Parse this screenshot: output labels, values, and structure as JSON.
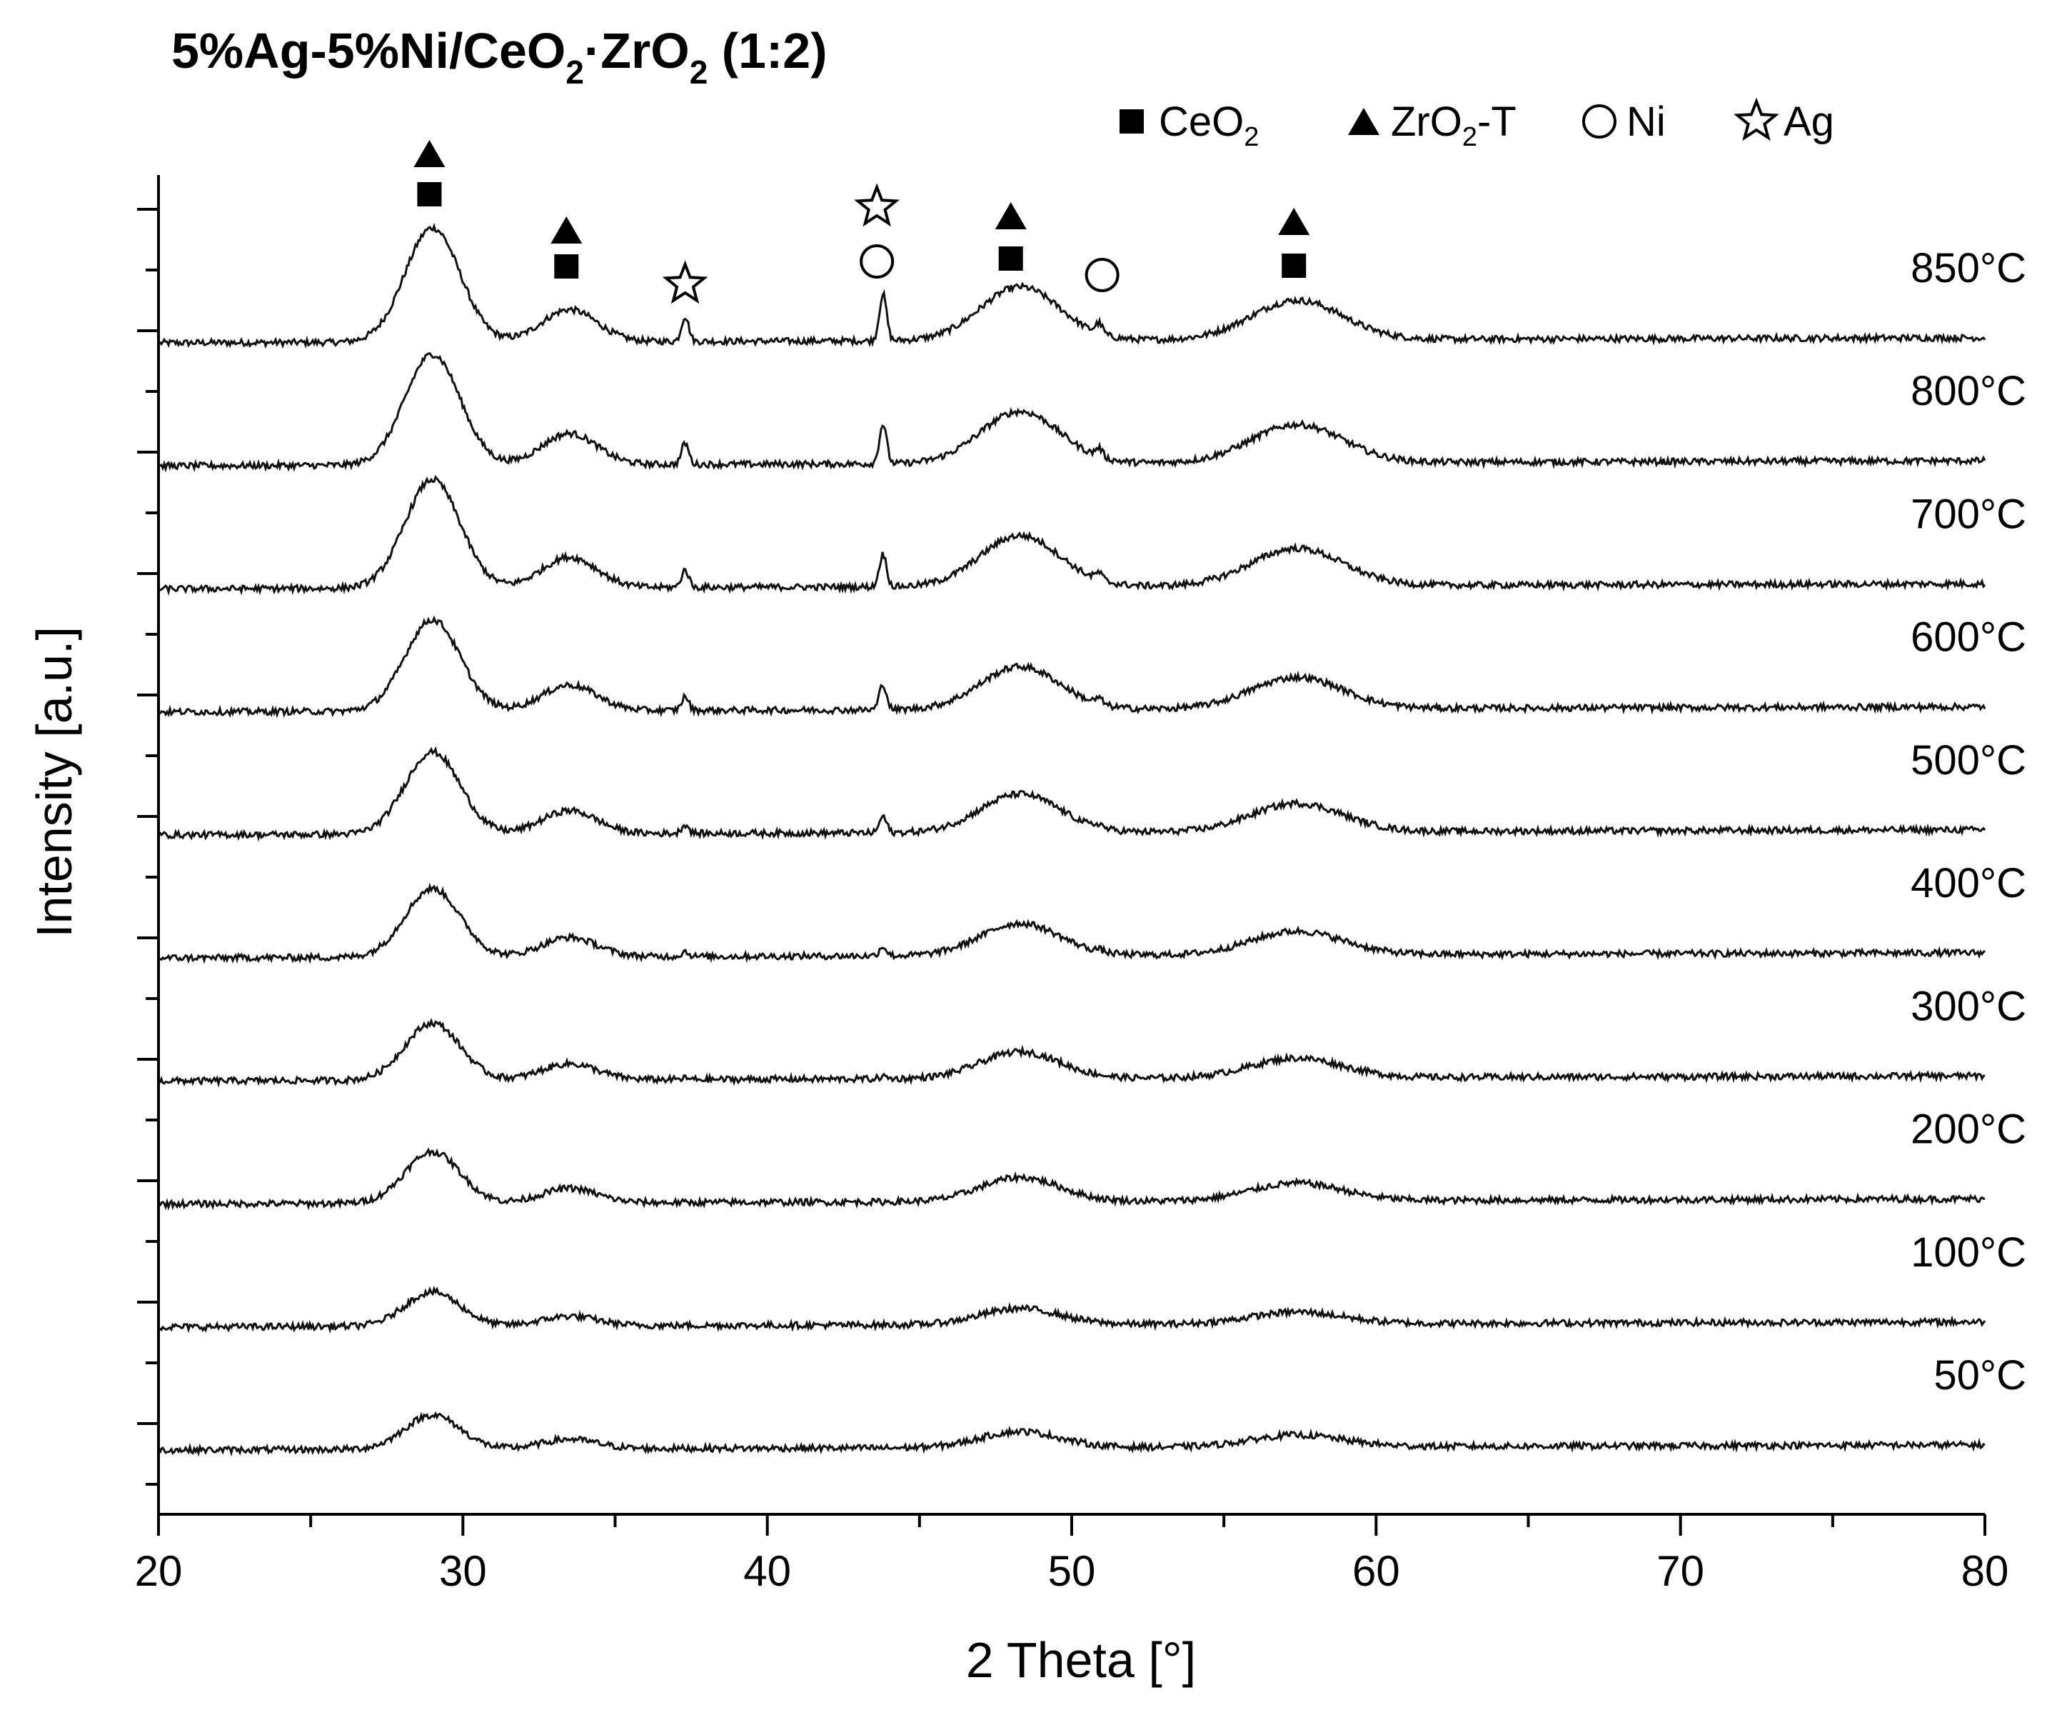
{
  "chart_data": {
    "type": "line",
    "title": {
      "prefix": "5%Ag-5%Ni/CeO",
      "s1": "2",
      "mid": "·ZrO",
      "s2": "2",
      "suffix": " (1:2)"
    },
    "xlabel": "2 Theta [°]",
    "ylabel": "Intensity [a.u.]",
    "xlim": [
      20,
      80
    ],
    "xticks": [
      "20",
      "30",
      "40",
      "50",
      "60",
      "70",
      "80"
    ],
    "legend": {
      "placement": "top-right",
      "items": [
        {
          "marker": "square",
          "label": "CeO",
          "sub": "2",
          "suffix": ""
        },
        {
          "marker": "triangle",
          "label": "ZrO",
          "sub": "2",
          "suffix": "-T"
        },
        {
          "marker": "circle",
          "label": "Ni",
          "sub": "",
          "suffix": ""
        },
        {
          "marker": "star",
          "label": "Ag",
          "sub": "",
          "suffix": ""
        }
      ]
    },
    "series": [
      {
        "name": "850°C",
        "scale": 1.0,
        "ag": 1.0
      },
      {
        "name": "800°C",
        "scale": 0.97,
        "ag": 0.85
      },
      {
        "name": "700°C",
        "scale": 0.95,
        "ag": 0.7
      },
      {
        "name": "600°C",
        "scale": 0.8,
        "ag": 0.55
      },
      {
        "name": "500°C",
        "scale": 0.72,
        "ag": 0.35
      },
      {
        "name": "400°C",
        "scale": 0.6,
        "ag": 0.2
      },
      {
        "name": "300°C",
        "scale": 0.5,
        "ag": 0.05
      },
      {
        "name": "200°C",
        "scale": 0.45,
        "ag": 0.0
      },
      {
        "name": "100°C",
        "scale": 0.3,
        "ag": 0.0
      },
      {
        "name": "50°C",
        "scale": 0.3,
        "ag": 0.0
      }
    ],
    "peaks": [
      {
        "x": 29.0,
        "height": 160,
        "width": 0.9,
        "phase": "CeO2 + ZrO2-T"
      },
      {
        "x": 33.5,
        "height": 45,
        "width": 0.9,
        "phase": "CeO2 + ZrO2-T"
      },
      {
        "x": 48.3,
        "height": 75,
        "width": 1.3,
        "phase": "CeO2 + ZrO2-T"
      },
      {
        "x": 57.4,
        "height": 55,
        "width": 1.5,
        "phase": "CeO2 + ZrO2-T"
      }
    ],
    "sharp_peaks": [
      {
        "x": 37.3,
        "height": 35,
        "phase": "Ag"
      },
      {
        "x": 43.8,
        "height": 65,
        "phase": "Ag / Ni"
      },
      {
        "x": 50.9,
        "height": 14,
        "phase": "Ni"
      }
    ],
    "phase_markers": [
      {
        "x": 28.9,
        "symbols": [
          "triangle",
          "square"
        ]
      },
      {
        "x": 33.4,
        "symbols": [
          "triangle",
          "square"
        ]
      },
      {
        "x": 37.3,
        "symbols": [
          "star"
        ]
      },
      {
        "x": 43.6,
        "symbols": [
          "star",
          "circle"
        ]
      },
      {
        "x": 48.0,
        "symbols": [
          "triangle",
          "square"
        ]
      },
      {
        "x": 51.0,
        "symbols": [
          "circle"
        ]
      },
      {
        "x": 57.3,
        "symbols": [
          "triangle",
          "square"
        ]
      }
    ],
    "grid": false
  }
}
